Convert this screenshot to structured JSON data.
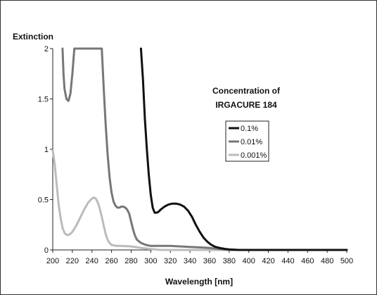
{
  "chart_data": {
    "type": "line",
    "title_lines": [
      "Concentration of",
      "IRGACURE 184"
    ],
    "xlabel": "Wavelength [nm]",
    "ylabel": "Extinction",
    "xlim": [
      200,
      500
    ],
    "ylim": [
      0,
      2
    ],
    "x_ticks": [
      200,
      220,
      240,
      260,
      280,
      300,
      320,
      340,
      360,
      380,
      400,
      420,
      440,
      460,
      480,
      500
    ],
    "y_ticks": [
      0,
      0.5,
      1,
      1.5,
      2
    ],
    "y_tick_labels": [
      "0",
      "0.5",
      "1",
      "1.5",
      "2"
    ],
    "grid": false,
    "legend_position": "center-right",
    "series": [
      {
        "name": "0.1%",
        "color": "#111111",
        "points": [
          [
            290,
            2.0
          ],
          [
            292,
            1.7
          ],
          [
            294,
            1.3
          ],
          [
            296,
            1.0
          ],
          [
            298,
            0.75
          ],
          [
            300,
            0.55
          ],
          [
            302,
            0.42
          ],
          [
            304,
            0.37
          ],
          [
            306,
            0.37
          ],
          [
            308,
            0.38
          ],
          [
            310,
            0.4
          ],
          [
            314,
            0.43
          ],
          [
            318,
            0.45
          ],
          [
            322,
            0.46
          ],
          [
            326,
            0.46
          ],
          [
            330,
            0.45
          ],
          [
            334,
            0.43
          ],
          [
            338,
            0.39
          ],
          [
            342,
            0.33
          ],
          [
            346,
            0.25
          ],
          [
            350,
            0.18
          ],
          [
            354,
            0.12
          ],
          [
            358,
            0.08
          ],
          [
            362,
            0.05
          ],
          [
            366,
            0.03
          ],
          [
            370,
            0.02
          ],
          [
            376,
            0.01
          ],
          [
            380,
            0.005
          ],
          [
            390,
            0.0
          ],
          [
            500,
            0.0
          ]
        ]
      },
      {
        "name": "0.01%",
        "color": "#777777",
        "points": [
          [
            210,
            2.0
          ],
          [
            211,
            1.75
          ],
          [
            212,
            1.6
          ],
          [
            214,
            1.5
          ],
          [
            216,
            1.48
          ],
          [
            218,
            1.55
          ],
          [
            220,
            1.75
          ],
          [
            222,
            2.0
          ],
          [
            250,
            2.0
          ],
          [
            252,
            1.6
          ],
          [
            254,
            1.25
          ],
          [
            256,
            0.95
          ],
          [
            258,
            0.72
          ],
          [
            260,
            0.57
          ],
          [
            262,
            0.48
          ],
          [
            264,
            0.44
          ],
          [
            266,
            0.42
          ],
          [
            268,
            0.42
          ],
          [
            270,
            0.43
          ],
          [
            272,
            0.43
          ],
          [
            274,
            0.42
          ],
          [
            276,
            0.4
          ],
          [
            278,
            0.36
          ],
          [
            280,
            0.28
          ],
          [
            282,
            0.2
          ],
          [
            284,
            0.14
          ],
          [
            286,
            0.1
          ],
          [
            290,
            0.07
          ],
          [
            295,
            0.05
          ],
          [
            300,
            0.04
          ],
          [
            310,
            0.04
          ],
          [
            320,
            0.04
          ],
          [
            330,
            0.035
          ],
          [
            340,
            0.03
          ],
          [
            350,
            0.025
          ],
          [
            360,
            0.02
          ],
          [
            370,
            0.01
          ],
          [
            380,
            0.0
          ],
          [
            500,
            0.0
          ]
        ]
      },
      {
        "name": "0.001%",
        "color": "#bbbbbb",
        "points": [
          [
            200,
            0.99
          ],
          [
            202,
            0.85
          ],
          [
            204,
            0.65
          ],
          [
            206,
            0.45
          ],
          [
            208,
            0.32
          ],
          [
            210,
            0.22
          ],
          [
            212,
            0.17
          ],
          [
            214,
            0.15
          ],
          [
            216,
            0.15
          ],
          [
            218,
            0.16
          ],
          [
            220,
            0.18
          ],
          [
            224,
            0.24
          ],
          [
            228,
            0.32
          ],
          [
            232,
            0.4
          ],
          [
            236,
            0.47
          ],
          [
            240,
            0.51
          ],
          [
            242,
            0.52
          ],
          [
            244,
            0.51
          ],
          [
            246,
            0.47
          ],
          [
            248,
            0.41
          ],
          [
            250,
            0.33
          ],
          [
            252,
            0.24
          ],
          [
            254,
            0.16
          ],
          [
            256,
            0.1
          ],
          [
            258,
            0.07
          ],
          [
            260,
            0.05
          ],
          [
            265,
            0.04
          ],
          [
            270,
            0.04
          ],
          [
            280,
            0.035
          ],
          [
            290,
            0.02
          ],
          [
            300,
            0.01
          ],
          [
            310,
            0.0
          ],
          [
            500,
            0.0
          ]
        ]
      }
    ]
  }
}
